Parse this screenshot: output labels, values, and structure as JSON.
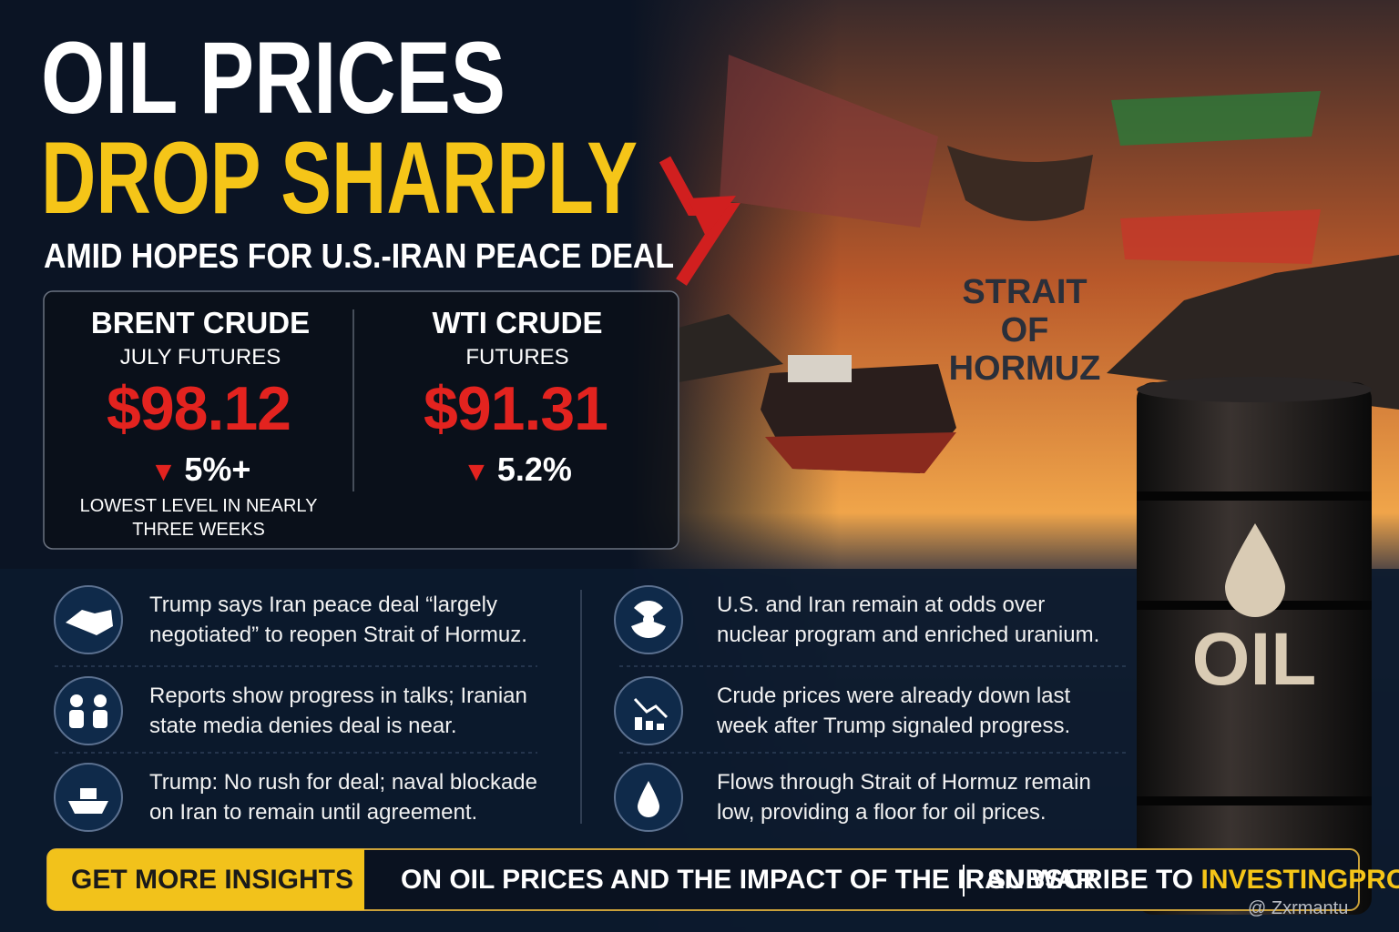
{
  "header": {
    "title_line1": "OIL PRICES",
    "title_line2": "DROP SHARPLY",
    "subtitle": "AMID HOPES FOR U.S.-IRAN PEACE DEAL"
  },
  "prices": [
    {
      "name": "BRENT CRUDE",
      "contract": "JULY FUTURES",
      "price": "$98.12",
      "change": "5%+",
      "note": "LOWEST LEVEL IN NEARLY THREE WEEKS"
    },
    {
      "name": "WTI CRUDE",
      "contract": "FUTURES",
      "price": "$91.31",
      "change": "5.2%"
    }
  ],
  "scene": {
    "location": "STRAIT OF HORMUZ",
    "barrel_label": "OIL"
  },
  "bullets": [
    "Trump says Iran peace deal “largely negotiated” to reopen Strait of Hormuz.",
    "Reports show progress in talks; Iranian state media denies deal is near.",
    "Trump: No rush for deal; naval blockade on Iran to remain until agreement.",
    "U.S. and Iran remain at odds over nuclear program and enriched uranium.",
    "Crude prices were already down last week after Trump signaled progress.",
    "Flows through Strait of Hormuz remain low, providing a floor for oil prices."
  ],
  "footer": {
    "cta": "GET MORE INSIGHTS",
    "message": "ON OIL PRICES AND THE IMPACT OF THE IRAN WAR",
    "subscribe": "SUBSCRIBE TO",
    "brand": "INVESTINGPRO"
  },
  "watermark": "@ Zxrmantu"
}
